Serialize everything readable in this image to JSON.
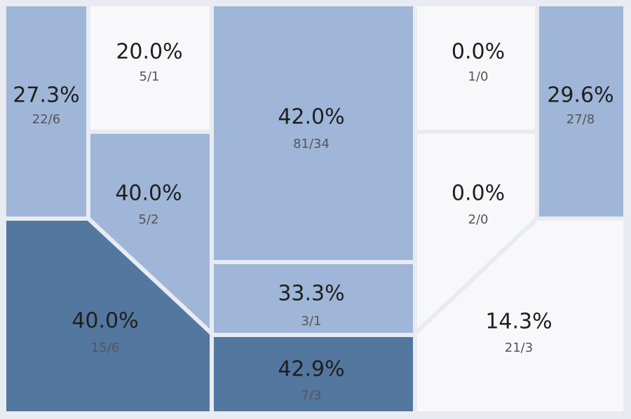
{
  "chart_data": {
    "type": "heatmap",
    "colors": {
      "high": "#53779f",
      "mid": "#9fb6d8",
      "low": "#f8f8fa",
      "border": "#e8ebf2"
    },
    "zones": [
      {
        "id": "left-corner",
        "pct": "27.3%",
        "ratio": "22/6",
        "made": 6,
        "attempts": 22,
        "level": "mid"
      },
      {
        "id": "left-wing-top",
        "pct": "20.0%",
        "ratio": "5/1",
        "made": 1,
        "attempts": 5,
        "level": "low"
      },
      {
        "id": "left-wing-mid",
        "pct": "40.0%",
        "ratio": "5/2",
        "made": 2,
        "attempts": 5,
        "level": "mid"
      },
      {
        "id": "left-bottom",
        "pct": "40.0%",
        "ratio": "15/6",
        "made": 6,
        "attempts": 15,
        "level": "high"
      },
      {
        "id": "center-top",
        "pct": "42.0%",
        "ratio": "81/34",
        "made": 34,
        "attempts": 81,
        "level": "mid"
      },
      {
        "id": "center-mid",
        "pct": "33.3%",
        "ratio": "3/1",
        "made": 1,
        "attempts": 3,
        "level": "mid"
      },
      {
        "id": "center-bottom",
        "pct": "42.9%",
        "ratio": "7/3",
        "made": 3,
        "attempts": 7,
        "level": "high"
      },
      {
        "id": "right-wing-top",
        "pct": "0.0%",
        "ratio": "1/0",
        "made": 0,
        "attempts": 1,
        "level": "low"
      },
      {
        "id": "right-wing-mid",
        "pct": "0.0%",
        "ratio": "2/0",
        "made": 0,
        "attempts": 2,
        "level": "low"
      },
      {
        "id": "right-corner",
        "pct": "29.6%",
        "ratio": "27/8",
        "made": 8,
        "attempts": 27,
        "level": "mid"
      },
      {
        "id": "right-bottom",
        "pct": "14.3%",
        "ratio": "21/3",
        "made": 3,
        "attempts": 21,
        "level": "low"
      }
    ]
  }
}
